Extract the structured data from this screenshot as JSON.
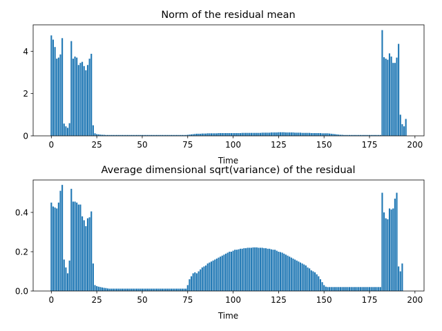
{
  "chart_data": [
    {
      "type": "bar",
      "title": "Norm of the residual mean",
      "xlabel": "Time",
      "ylabel": "",
      "xlim": [
        -10,
        205
      ],
      "ylim": [
        0,
        5.25
      ],
      "xticks": [
        0,
        25,
        50,
        75,
        100,
        125,
        150,
        175,
        200
      ],
      "yticks": [
        0,
        2,
        4
      ],
      "x_start": 0,
      "color": "#1f77b4",
      "values": [
        4.75,
        4.55,
        4.2,
        3.65,
        3.7,
        3.85,
        4.62,
        0.58,
        0.45,
        0.38,
        0.6,
        4.48,
        3.65,
        3.75,
        3.7,
        3.35,
        3.45,
        3.5,
        3.3,
        3.1,
        3.35,
        3.65,
        3.88,
        0.5,
        0.12,
        0.08,
        0.07,
        0.06,
        0.05,
        0.05,
        0.04,
        0.04,
        0.04,
        0.04,
        0.04,
        0.04,
        0.04,
        0.04,
        0.04,
        0.04,
        0.04,
        0.04,
        0.04,
        0.04,
        0.04,
        0.04,
        0.04,
        0.04,
        0.04,
        0.04,
        0.04,
        0.04,
        0.04,
        0.04,
        0.04,
        0.04,
        0.04,
        0.04,
        0.04,
        0.04,
        0.04,
        0.04,
        0.04,
        0.04,
        0.04,
        0.04,
        0.04,
        0.04,
        0.04,
        0.04,
        0.04,
        0.04,
        0.04,
        0.04,
        0.04,
        0.05,
        0.06,
        0.07,
        0.08,
        0.09,
        0.1,
        0.1,
        0.1,
        0.11,
        0.11,
        0.11,
        0.12,
        0.12,
        0.12,
        0.12,
        0.12,
        0.12,
        0.13,
        0.13,
        0.13,
        0.13,
        0.13,
        0.13,
        0.13,
        0.13,
        0.13,
        0.13,
        0.13,
        0.13,
        0.13,
        0.14,
        0.14,
        0.14,
        0.14,
        0.14,
        0.14,
        0.14,
        0.14,
        0.14,
        0.14,
        0.14,
        0.15,
        0.15,
        0.15,
        0.15,
        0.15,
        0.16,
        0.16,
        0.16,
        0.16,
        0.17,
        0.17,
        0.17,
        0.17,
        0.16,
        0.16,
        0.16,
        0.16,
        0.16,
        0.15,
        0.15,
        0.15,
        0.15,
        0.14,
        0.14,
        0.14,
        0.14,
        0.14,
        0.13,
        0.13,
        0.13,
        0.13,
        0.13,
        0.13,
        0.12,
        0.12,
        0.12,
        0.12,
        0.11,
        0.1,
        0.09,
        0.08,
        0.07,
        0.06,
        0.05,
        0.05,
        0.04,
        0.04,
        0.04,
        0.04,
        0.04,
        0.04,
        0.04,
        0.04,
        0.04,
        0.04,
        0.04,
        0.04,
        0.04,
        0.04,
        0.04,
        0.04,
        0.04,
        0.04,
        0.04,
        0.04,
        0.04,
        5.0,
        3.72,
        3.65,
        3.6,
        3.9,
        3.75,
        3.45,
        3.45,
        3.7,
        4.35,
        1.0,
        0.55,
        0.45,
        0.8
      ]
    },
    {
      "type": "bar",
      "title": "Average dimensional sqrt(variance) of the residual",
      "xlabel": "Time",
      "ylabel": "",
      "xlim": [
        -10,
        205
      ],
      "ylim": [
        0,
        0.565
      ],
      "xticks": [
        0,
        25,
        50,
        75,
        100,
        125,
        150,
        175,
        200
      ],
      "yticks": [
        0.0,
        0.2,
        0.4
      ],
      "ytick_labels": [
        "0.0",
        "0.2",
        "0.4"
      ],
      "x_start": 0,
      "color": "#1f77b4",
      "values": [
        0.45,
        0.43,
        0.425,
        0.42,
        0.45,
        0.51,
        0.54,
        0.16,
        0.12,
        0.09,
        0.155,
        0.52,
        0.455,
        0.455,
        0.45,
        0.44,
        0.44,
        0.38,
        0.36,
        0.33,
        0.37,
        0.375,
        0.405,
        0.14,
        0.03,
        0.025,
        0.022,
        0.02,
        0.018,
        0.016,
        0.015,
        0.013,
        0.012,
        0.012,
        0.012,
        0.012,
        0.012,
        0.012,
        0.012,
        0.012,
        0.012,
        0.012,
        0.012,
        0.012,
        0.012,
        0.012,
        0.012,
        0.012,
        0.012,
        0.012,
        0.012,
        0.012,
        0.012,
        0.012,
        0.012,
        0.012,
        0.012,
        0.012,
        0.012,
        0.012,
        0.012,
        0.012,
        0.012,
        0.012,
        0.012,
        0.012,
        0.012,
        0.012,
        0.012,
        0.012,
        0.012,
        0.012,
        0.012,
        0.012,
        0.012,
        0.03,
        0.06,
        0.075,
        0.09,
        0.095,
        0.09,
        0.1,
        0.11,
        0.12,
        0.125,
        0.13,
        0.14,
        0.145,
        0.15,
        0.155,
        0.16,
        0.165,
        0.17,
        0.175,
        0.18,
        0.185,
        0.19,
        0.195,
        0.2,
        0.2,
        0.205,
        0.21,
        0.21,
        0.212,
        0.215,
        0.215,
        0.218,
        0.218,
        0.22,
        0.22,
        0.22,
        0.222,
        0.222,
        0.222,
        0.22,
        0.22,
        0.22,
        0.218,
        0.218,
        0.215,
        0.215,
        0.212,
        0.21,
        0.21,
        0.205,
        0.2,
        0.198,
        0.195,
        0.19,
        0.185,
        0.18,
        0.175,
        0.17,
        0.165,
        0.16,
        0.155,
        0.15,
        0.145,
        0.14,
        0.135,
        0.13,
        0.12,
        0.115,
        0.105,
        0.1,
        0.095,
        0.085,
        0.075,
        0.06,
        0.045,
        0.03,
        0.022,
        0.02,
        0.02,
        0.02,
        0.02,
        0.02,
        0.02,
        0.02,
        0.02,
        0.02,
        0.02,
        0.02,
        0.02,
        0.02,
        0.02,
        0.02,
        0.02,
        0.02,
        0.02,
        0.02,
        0.02,
        0.02,
        0.02,
        0.02,
        0.02,
        0.02,
        0.02,
        0.02,
        0.02,
        0.02,
        0.02,
        0.5,
        0.4,
        0.37,
        0.365,
        0.42,
        0.415,
        0.42,
        0.47,
        0.5,
        0.125,
        0.1,
        0.14
      ]
    }
  ]
}
